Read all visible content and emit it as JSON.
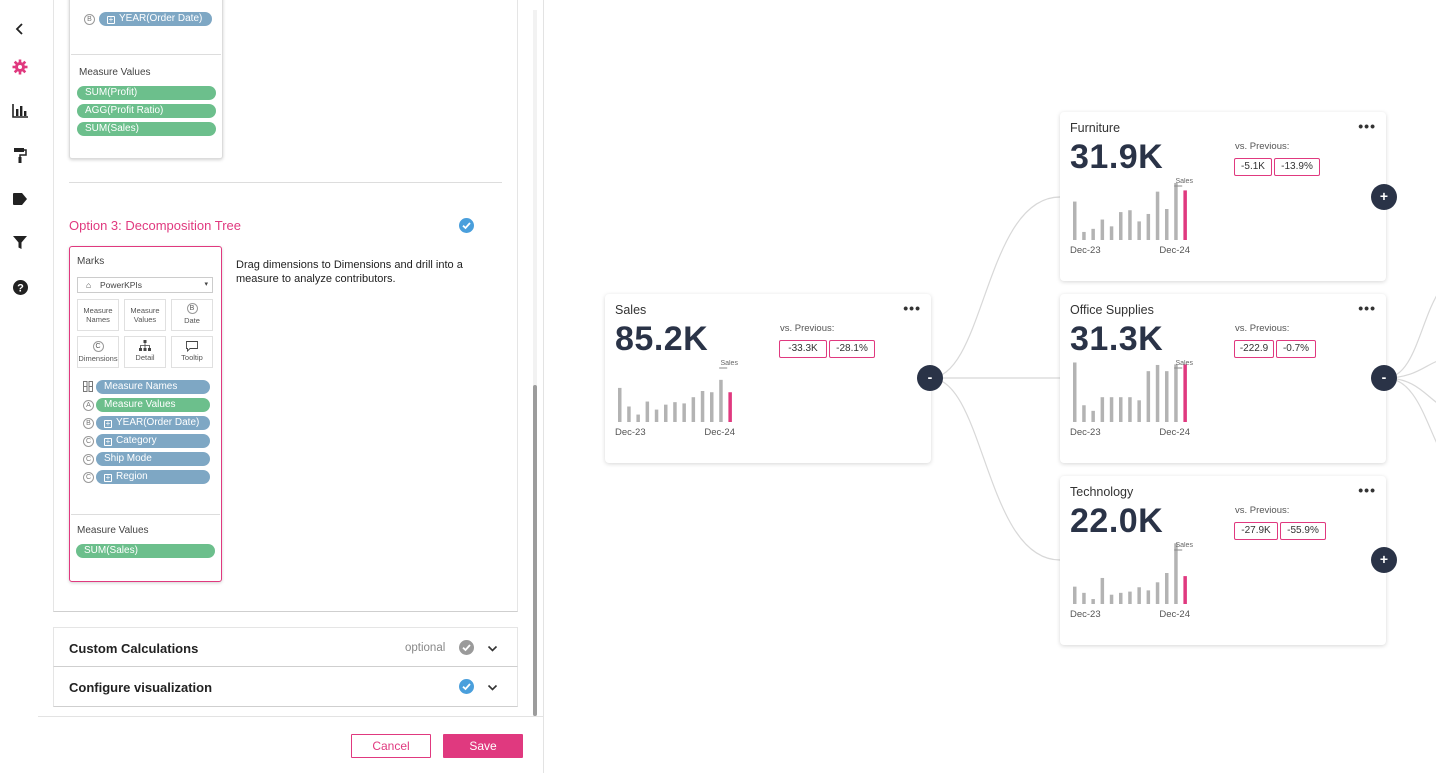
{
  "rail": {
    "icons": [
      "chevron-left-icon",
      "gear-icon",
      "bar-chart-icon",
      "paint-roller-icon",
      "tag-icon",
      "filter-icon",
      "help-icon"
    ]
  },
  "option2": {
    "top_pill": "YEAR(Order Date)",
    "top_badge": "B",
    "measure_values_label": "Measure Values",
    "measures": [
      "SUM(Profit)",
      "AGG(Profit Ratio)",
      "SUM(Sales)"
    ]
  },
  "option3": {
    "title": "Option 3: Decomposition Tree",
    "description": "Drag dimensions to Dimensions and drill into a measure to analyze contributors.",
    "marks_label": "Marks",
    "marks_select": "PowerKPIs",
    "mark_buttons": [
      {
        "label": "Measure Names",
        "icon": "label"
      },
      {
        "label": "Measure Values",
        "icon": "label"
      },
      {
        "label": "Date",
        "icon": "B"
      },
      {
        "label": "Dimensions",
        "icon": "C"
      },
      {
        "label": "Detail",
        "icon": "tree"
      },
      {
        "label": "Tooltip",
        "icon": "comment"
      }
    ],
    "fields": [
      {
        "badge": "grid",
        "label": "Measure Names",
        "color": "blue",
        "plus": false
      },
      {
        "badge": "A",
        "label": "Measure Values",
        "color": "green",
        "plus": false
      },
      {
        "badge": "B",
        "label": "YEAR(Order Date)",
        "color": "blue",
        "plus": true
      },
      {
        "badge": "C",
        "label": "Category",
        "color": "blue",
        "plus": true
      },
      {
        "badge": "C",
        "label": "Ship Mode",
        "color": "blue",
        "plus": false
      },
      {
        "badge": "C",
        "label": "Region",
        "color": "blue",
        "plus": true
      }
    ],
    "measure_values_label": "Measure Values",
    "measure": "SUM(Sales)"
  },
  "sections": {
    "custom_calculations": {
      "title": "Custom Calculations",
      "optional": "optional"
    },
    "configure_visualization": {
      "title": "Configure visualization"
    }
  },
  "footer": {
    "cancel": "Cancel",
    "save": "Save"
  },
  "colors": {
    "accent": "#e0397f",
    "navy": "#2a3347",
    "green_pill": "#6cbf8c",
    "blue_pill": "#7ea7c4",
    "check_blue": "#4a9fdc",
    "check_gray": "#9a9a9a"
  },
  "tree": {
    "vs_label": "vs. Previous:",
    "spark_start": "Dec-23",
    "spark_end": "Dec-24",
    "spark_series": "Sales",
    "nodes": [
      {
        "id": "root",
        "title": "Sales",
        "value": "85.2K",
        "delta_abs": "-33.3K",
        "delta_pct": "-28.1%",
        "toggle": "-",
        "bars": [
          0.55,
          0.25,
          0.12,
          0.33,
          0.2,
          0.28,
          0.32,
          0.3,
          0.4,
          0.5,
          0.48,
          0.68,
          0.48
        ]
      },
      {
        "id": "furniture",
        "title": "Furniture",
        "value": "31.9K",
        "delta_abs": "-5.1K",
        "delta_pct": "-13.9%",
        "toggle": "+",
        "bars": [
          0.62,
          0.13,
          0.18,
          0.33,
          0.22,
          0.45,
          0.48,
          0.3,
          0.42,
          0.78,
          0.5,
          0.92,
          0.8
        ]
      },
      {
        "id": "office",
        "title": "Office Supplies",
        "value": "31.3K",
        "delta_abs": "-222.9",
        "delta_pct": "-0.7%",
        "toggle": "-",
        "bars": [
          0.96,
          0.27,
          0.18,
          0.4,
          0.4,
          0.4,
          0.4,
          0.35,
          0.82,
          0.92,
          0.82,
          0.93,
          0.93
        ]
      },
      {
        "id": "technology",
        "title": "Technology",
        "value": "22.0K",
        "delta_abs": "-27.9K",
        "delta_pct": "-55.9%",
        "toggle": "+",
        "bars": [
          0.28,
          0.18,
          0.08,
          0.42,
          0.15,
          0.18,
          0.2,
          0.27,
          0.22,
          0.35,
          0.5,
          0.98,
          0.45
        ]
      }
    ]
  }
}
